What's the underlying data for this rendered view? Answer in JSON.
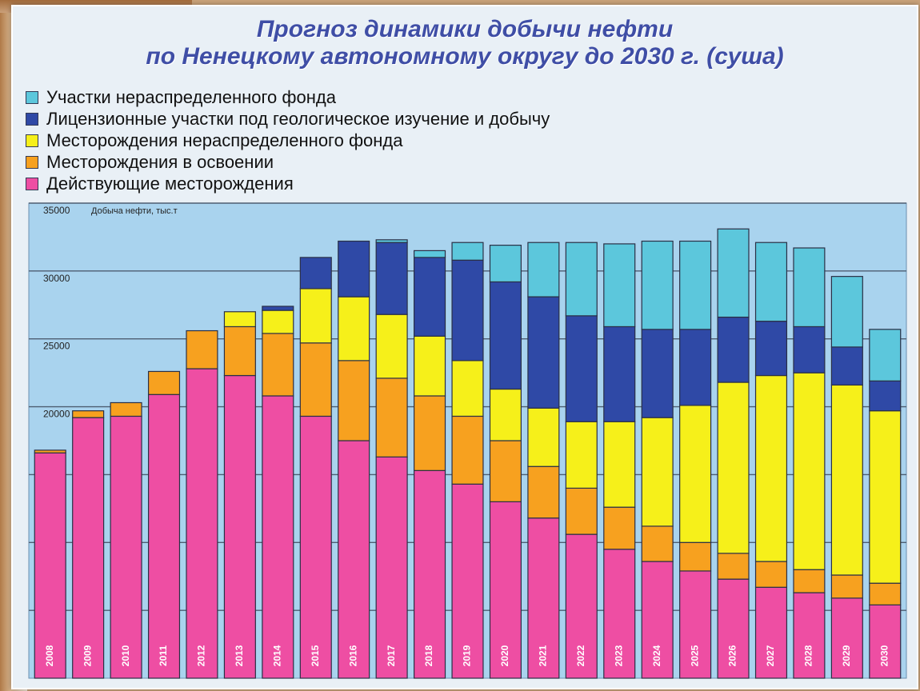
{
  "title_lines": [
    "Прогноз динамики добычи нефти",
    "по Ненецкому автономному округу до 2030 г. (суша)"
  ],
  "chart_data": {
    "type": "bar",
    "stacked": true,
    "ylabel": "Добыча нефти, тыс.т",
    "ylim": [
      0,
      35000
    ],
    "y_ticks": [
      20000,
      25000,
      30000,
      35000
    ],
    "grid": true,
    "legend_position": "top-left",
    "categories": [
      "2008",
      "2009",
      "2010",
      "2011",
      "2012",
      "2013",
      "2014",
      "2015",
      "2016",
      "2017",
      "2018",
      "2019",
      "2020",
      "2021",
      "2022",
      "2023",
      "2024",
      "2025",
      "2026",
      "2027",
      "2028",
      "2029",
      "2030"
    ],
    "series": [
      {
        "name": "Действующие месторождения",
        "color": "#ee4ea3",
        "values": [
          16600,
          19200,
          19300,
          20900,
          22800,
          22300,
          20800,
          19300,
          17500,
          16300,
          15300,
          14300,
          13000,
          11800,
          10600,
          9500,
          8600,
          7900,
          7300,
          6700,
          6300,
          5900,
          5400
        ]
      },
      {
        "name": "Месторождения в освоении",
        "color": "#f7a11f",
        "values": [
          200,
          500,
          1000,
          1700,
          2800,
          3600,
          4600,
          5400,
          5900,
          5800,
          5500,
          5000,
          4500,
          3800,
          3400,
          3100,
          2600,
          2100,
          1900,
          1900,
          1700,
          1700,
          1600
        ]
      },
      {
        "name": "Месторождения нераспределенного фонда",
        "color": "#f6f01a",
        "values": [
          0,
          0,
          0,
          0,
          0,
          1100,
          1700,
          4000,
          4700,
          4700,
          4400,
          4100,
          3800,
          4300,
          4900,
          6300,
          8000,
          10100,
          12600,
          13700,
          14500,
          14000,
          12700
        ]
      },
      {
        "name": "Лицензионные участки под геологическое изучение и добычу",
        "color": "#2f49a6",
        "values": [
          0,
          0,
          0,
          0,
          0,
          0,
          300,
          2300,
          4100,
          5300,
          5800,
          7400,
          7900,
          8200,
          7800,
          7000,
          6500,
          5600,
          4800,
          4000,
          3400,
          2800,
          2200
        ]
      },
      {
        "name": "Участки нераспределенного фонда",
        "color": "#5cc7dc",
        "values": [
          0,
          0,
          0,
          0,
          0,
          0,
          0,
          0,
          0,
          200,
          500,
          1300,
          2700,
          4000,
          5400,
          6100,
          6500,
          6500,
          6500,
          5800,
          5800,
          5200,
          3800
        ]
      }
    ]
  }
}
